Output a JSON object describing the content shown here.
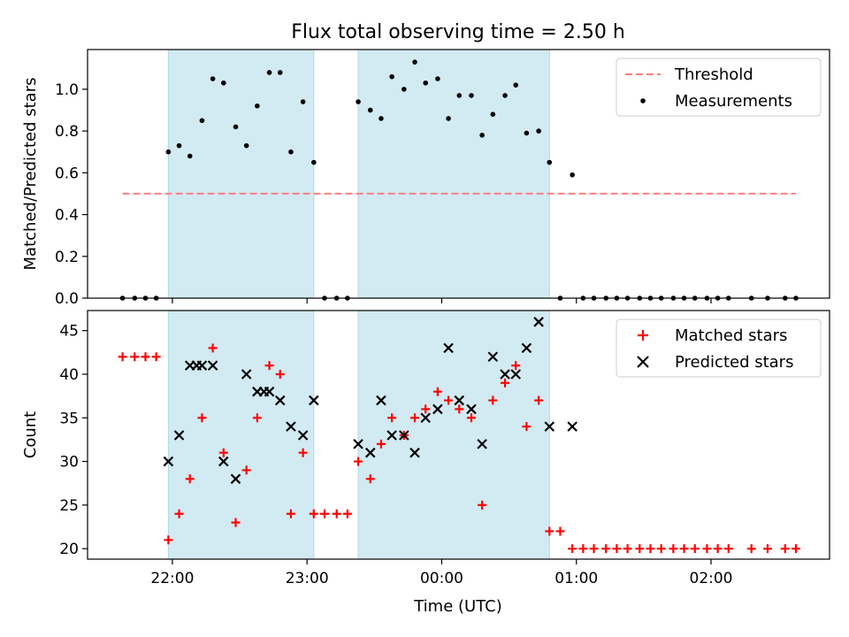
{
  "figure": {
    "title": "Flux total observing time = 2.50 h",
    "xlabel": "Time (UTC)"
  },
  "colors": {
    "shade": "#add8e6",
    "threshold": "#ff7f7f",
    "measurement": "#000000",
    "matched": "#ff0000",
    "predicted": "#000000"
  },
  "chart_data": [
    {
      "type": "scatter",
      "panel": "top",
      "ylabel": "Matched/Predicted stars",
      "x_unit": "hours after 00:00 UTC (negative = before midnight)",
      "xlim": [
        -2.63,
        2.88
      ],
      "ylim": [
        0,
        1.19
      ],
      "yticks": [
        0.0,
        0.2,
        0.4,
        0.6,
        0.8,
        1.0
      ],
      "ytick_labels": [
        "0.0",
        "0.2",
        "0.4",
        "0.6",
        "0.8",
        "1.0"
      ],
      "xticks": [
        -2.0,
        -1.0,
        0.0,
        1.0,
        2.0
      ],
      "grid": false,
      "legend": "upper right",
      "shaded_intervals": [
        [
          -2.03,
          -0.95
        ],
        [
          -0.62,
          0.8
        ]
      ],
      "series": [
        {
          "name": "Threshold",
          "style": "dashed-line",
          "x": [
            -2.37,
            2.63
          ],
          "y": [
            0.5,
            0.5
          ]
        },
        {
          "name": "Measurements",
          "style": "dot",
          "x": [
            -2.37,
            -2.28,
            -2.2,
            -2.12,
            -2.03,
            -1.95,
            -1.87,
            -1.78,
            -1.7,
            -1.62,
            -1.53,
            -1.45,
            -1.37,
            -1.28,
            -1.2,
            -1.12,
            -1.03,
            -0.95,
            -0.87,
            -0.78,
            -0.7,
            -0.62,
            -0.53,
            -0.45,
            -0.37,
            -0.28,
            -0.2,
            -0.12,
            -0.03,
            0.05,
            0.13,
            0.22,
            0.3,
            0.38,
            0.47,
            0.55,
            0.63,
            0.72,
            0.8,
            0.88,
            0.97,
            1.05,
            1.13,
            1.22,
            1.3,
            1.38,
            1.47,
            1.55,
            1.63,
            1.72,
            1.8,
            1.88,
            1.97,
            2.05,
            2.13,
            2.3,
            2.42,
            2.55,
            2.63
          ],
          "y": [
            0.0,
            0.0,
            0.0,
            0.0,
            0.7,
            0.73,
            0.68,
            0.85,
            1.05,
            1.03,
            0.82,
            0.73,
            0.92,
            1.08,
            1.08,
            0.7,
            0.94,
            0.65,
            0.0,
            0.0,
            0.0,
            0.94,
            0.9,
            0.86,
            1.06,
            1.0,
            1.13,
            1.03,
            1.05,
            0.86,
            0.97,
            0.97,
            0.78,
            0.88,
            0.97,
            1.02,
            0.79,
            0.8,
            0.65,
            0.0,
            0.59,
            0.0,
            0.0,
            0.0,
            0.0,
            0.0,
            0.0,
            0.0,
            0.0,
            0.0,
            0.0,
            0.0,
            0.0,
            0.0,
            0.0,
            0.0,
            0.0,
            0.0,
            0.0
          ]
        }
      ]
    },
    {
      "type": "scatter",
      "panel": "bottom",
      "ylabel": "Count",
      "x_unit": "hours after 00:00 UTC (negative = before midnight)",
      "xlim": [
        -2.63,
        2.88
      ],
      "ylim": [
        18.8,
        47.3
      ],
      "yticks": [
        20,
        25,
        30,
        35,
        40,
        45
      ],
      "ytick_labels": [
        "20",
        "25",
        "30",
        "35",
        "40",
        "45"
      ],
      "xticks": [
        -2.0,
        -1.0,
        0.0,
        1.0,
        2.0
      ],
      "xtick_labels": [
        "22:00",
        "23:00",
        "00:00",
        "01:00",
        "02:00"
      ],
      "grid": false,
      "legend": "upper right",
      "shaded_intervals": [
        [
          -2.03,
          -0.95
        ],
        [
          -0.62,
          0.8
        ]
      ],
      "series": [
        {
          "name": "Matched stars",
          "marker": "plus",
          "x": [
            -2.37,
            -2.28,
            -2.2,
            -2.12,
            -2.03,
            -1.95,
            -1.87,
            -1.78,
            -1.7,
            -1.62,
            -1.53,
            -1.45,
            -1.37,
            -1.28,
            -1.2,
            -1.12,
            -1.03,
            -0.95,
            -0.87,
            -0.78,
            -0.7,
            -0.62,
            -0.53,
            -0.45,
            -0.37,
            -0.28,
            -0.2,
            -0.12,
            -0.03,
            0.05,
            0.13,
            0.22,
            0.3,
            0.38,
            0.47,
            0.55,
            0.63,
            0.72,
            0.8,
            0.88,
            0.97,
            1.05,
            1.13,
            1.22,
            1.3,
            1.38,
            1.47,
            1.55,
            1.63,
            1.72,
            1.8,
            1.88,
            1.97,
            2.05,
            2.13,
            2.3,
            2.42,
            2.55,
            2.63
          ],
          "y": [
            42,
            42,
            42,
            42,
            21,
            24,
            28,
            35,
            43,
            31,
            23,
            29,
            35,
            41,
            40,
            24,
            31,
            24,
            24,
            24,
            24,
            30,
            28,
            32,
            35,
            33,
            35,
            36,
            38,
            37,
            36,
            35,
            25,
            37,
            39,
            41,
            34,
            37,
            22,
            22,
            20,
            20,
            20,
            20,
            20,
            20,
            20,
            20,
            20,
            20,
            20,
            20,
            20,
            20,
            20,
            20,
            20,
            20,
            20
          ]
        },
        {
          "name": "Predicted stars",
          "marker": "x",
          "x": [
            -2.03,
            -1.95,
            -1.87,
            -1.82,
            -1.78,
            -1.7,
            -1.62,
            -1.53,
            -1.45,
            -1.37,
            -1.32,
            -1.28,
            -1.2,
            -1.12,
            -1.03,
            -0.95,
            -0.62,
            -0.53,
            -0.45,
            -0.37,
            -0.28,
            -0.2,
            -0.12,
            -0.03,
            0.05,
            0.13,
            0.22,
            0.3,
            0.38,
            0.47,
            0.55,
            0.63,
            0.72,
            0.8,
            0.97
          ],
          "y": [
            30,
            33,
            41,
            41,
            41,
            41,
            30,
            28,
            40,
            38,
            38,
            38,
            37,
            34,
            33,
            37,
            32,
            31,
            37,
            33,
            33,
            31,
            35,
            36,
            43,
            37,
            36,
            32,
            42,
            40,
            40,
            43,
            46,
            34,
            34
          ]
        }
      ]
    }
  ]
}
